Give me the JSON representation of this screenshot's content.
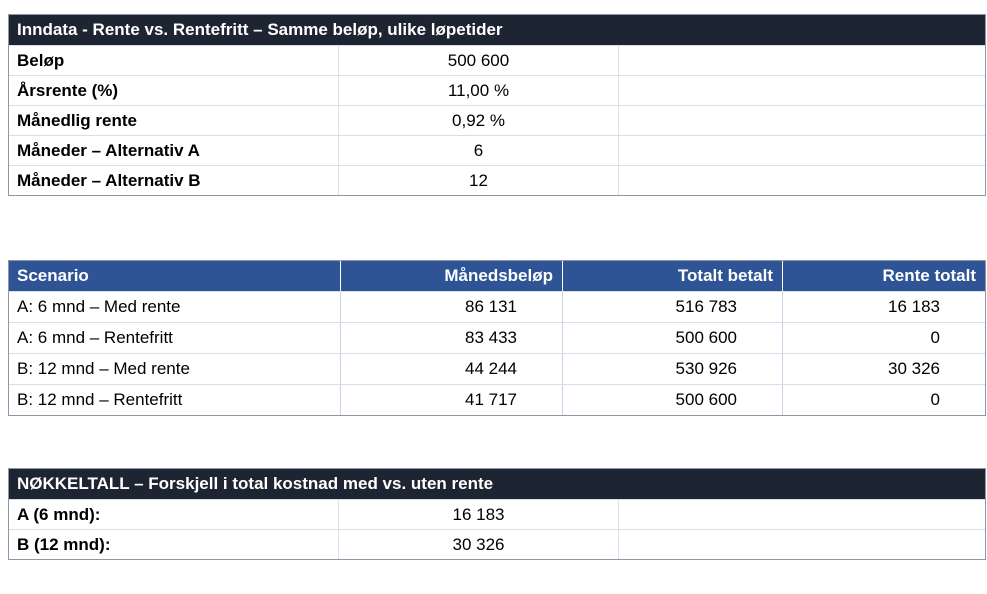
{
  "colors": {
    "dark_header_bg": "#1E2532",
    "blue_header_bg": "#2F5496",
    "header_text": "#FFFFFF",
    "body_text": "#000000",
    "outer_border": "#8C97A8",
    "inner_border": "#D8DEE8"
  },
  "input_table": {
    "title": "Inndata - Rente vs. Rentefritt – Samme beløp, ulike løpetider",
    "rows": [
      {
        "label": "Beløp",
        "value": "500 600"
      },
      {
        "label": "Årsrente (%)",
        "value": "11,00 %"
      },
      {
        "label": "Månedlig rente",
        "value": "0,92 %"
      },
      {
        "label": "Måneder – Alternativ A",
        "value": "6"
      },
      {
        "label": "Måneder – Alternativ B",
        "value": "12"
      }
    ]
  },
  "scenario_table": {
    "headers": [
      "Scenario",
      "Månedsbeløp",
      "Totalt betalt",
      "Rente totalt"
    ],
    "rows": [
      {
        "scenario": "A: 6 mnd – Med rente",
        "monthly": "86 131",
        "total": "516 783",
        "interest": "16 183"
      },
      {
        "scenario": "A: 6 mnd – Rentefritt",
        "monthly": "83 433",
        "total": "500 600",
        "interest": "0"
      },
      {
        "scenario": "B: 12 mnd – Med rente",
        "monthly": "44 244",
        "total": "530 926",
        "interest": "30 326"
      },
      {
        "scenario": "B: 12 mnd – Rentefritt",
        "monthly": "41 717",
        "total": "500 600",
        "interest": "0"
      }
    ]
  },
  "key_figures_table": {
    "title": "NØKKELTALL – Forskjell i total kostnad med vs. uten rente",
    "rows": [
      {
        "label": "A (6 mnd):",
        "value": "16 183"
      },
      {
        "label": "B (12 mnd):",
        "value": "30 326"
      }
    ]
  }
}
